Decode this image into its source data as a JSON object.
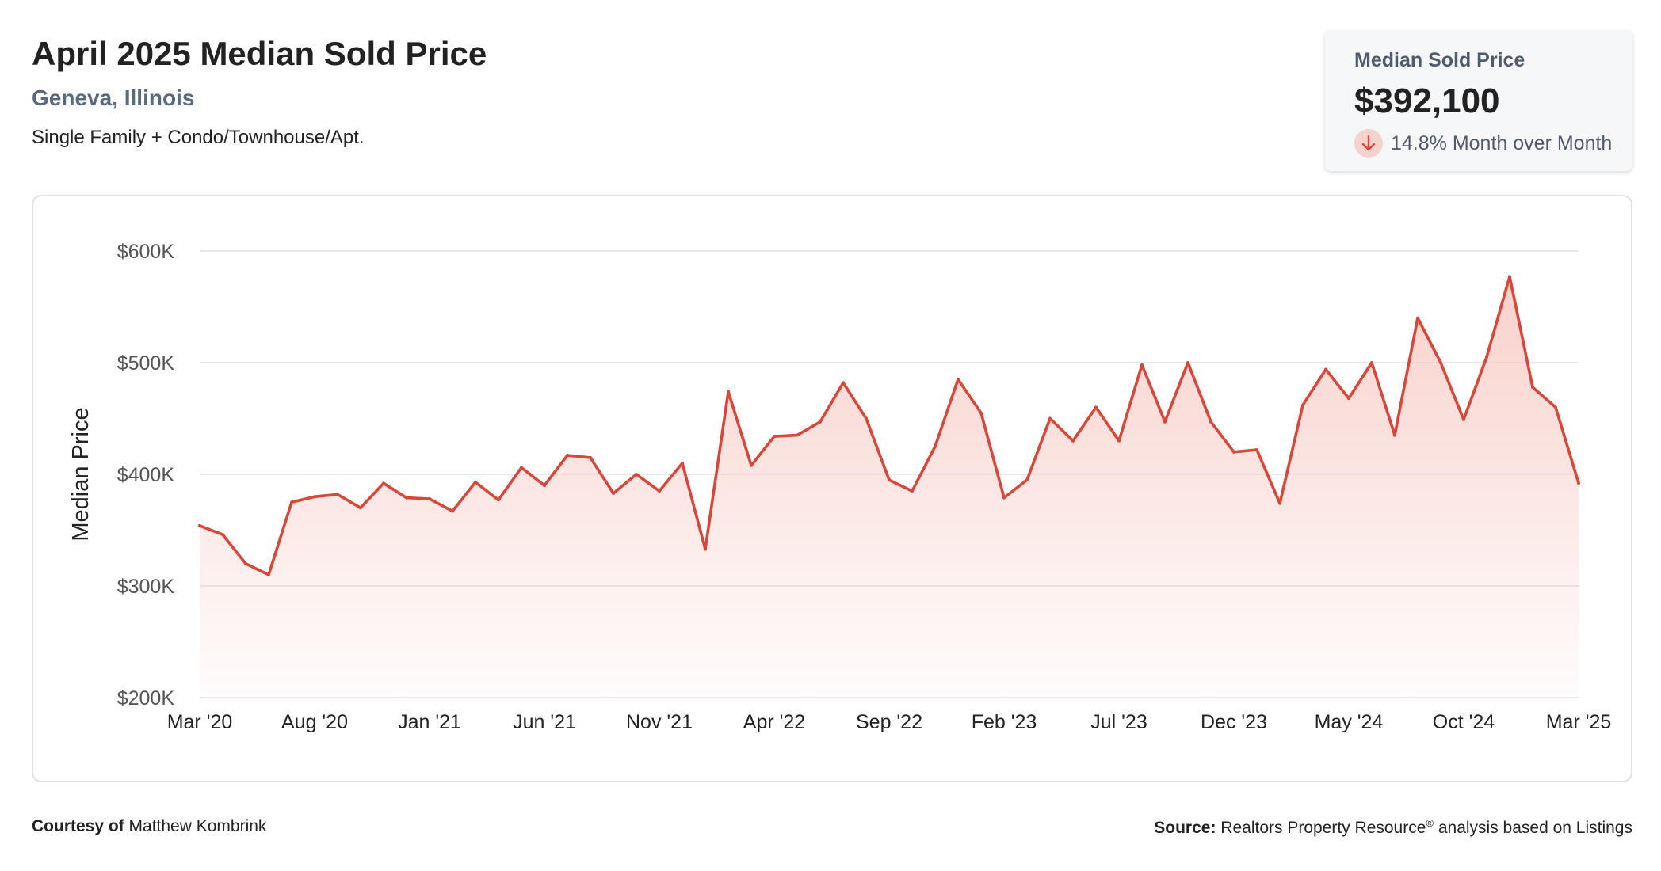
{
  "header": {
    "title": "April 2025 Median Sold Price",
    "location": "Geneva, Illinois",
    "subtitle": "Single Family + Condo/Townhouse/Apt."
  },
  "stat_card": {
    "label": "Median Sold Price",
    "value": "$392,100",
    "change_text": "14.8% Month over Month",
    "direction_icon": "arrow-down-icon"
  },
  "footer": {
    "courtesy_label": "Courtesy of",
    "courtesy_name": "Matthew Kombrink",
    "source_label": "Source:",
    "source_text_1": "Realtors Property Resource",
    "source_mark": "®",
    "source_text_2": " analysis based on Listings"
  },
  "colors": {
    "line": "#d9473a",
    "fill_top": "#f7c9c2",
    "grid": "#dde2e6",
    "icon_bg": "#f6d2cd"
  },
  "chart_data": {
    "type": "area",
    "ylabel": "Median Price",
    "ylim": [
      200000,
      600000
    ],
    "y_ticks": [
      200000,
      300000,
      400000,
      500000,
      600000
    ],
    "y_tick_labels": [
      "$200K",
      "$300K",
      "$400K",
      "$500K",
      "$600K"
    ],
    "x_tick_labels": [
      "Mar '20",
      "Aug '20",
      "Jan '21",
      "Jun '21",
      "Nov '21",
      "Apr '22",
      "Sep '22",
      "Feb '23",
      "Jul '23",
      "Dec '23",
      "May '24",
      "Oct '24",
      "Mar '25"
    ],
    "x_tick_indices": [
      0,
      5,
      10,
      15,
      20,
      25,
      30,
      35,
      40,
      45,
      50,
      55,
      60
    ],
    "grid": true,
    "legend": "none",
    "series": [
      {
        "values": [
          354000,
          346000,
          320000,
          310000,
          375000,
          380000,
          382000,
          370000,
          392000,
          379000,
          378000,
          367000,
          393000,
          377000,
          406000,
          390000,
          417000,
          415000,
          383000,
          400000,
          385000,
          410000,
          333000,
          474000,
          408000,
          434000,
          435000,
          447000,
          482000,
          450000,
          395000,
          385000,
          425000,
          485000,
          455000,
          379000,
          395000,
          450000,
          430000,
          460000,
          430000,
          498000,
          447000,
          500000,
          447000,
          420000,
          422000,
          374000,
          462000,
          494000,
          468000,
          500000,
          435000,
          540000,
          500000,
          449000,
          505000,
          577000,
          478000,
          460000,
          392100
        ]
      }
    ]
  }
}
